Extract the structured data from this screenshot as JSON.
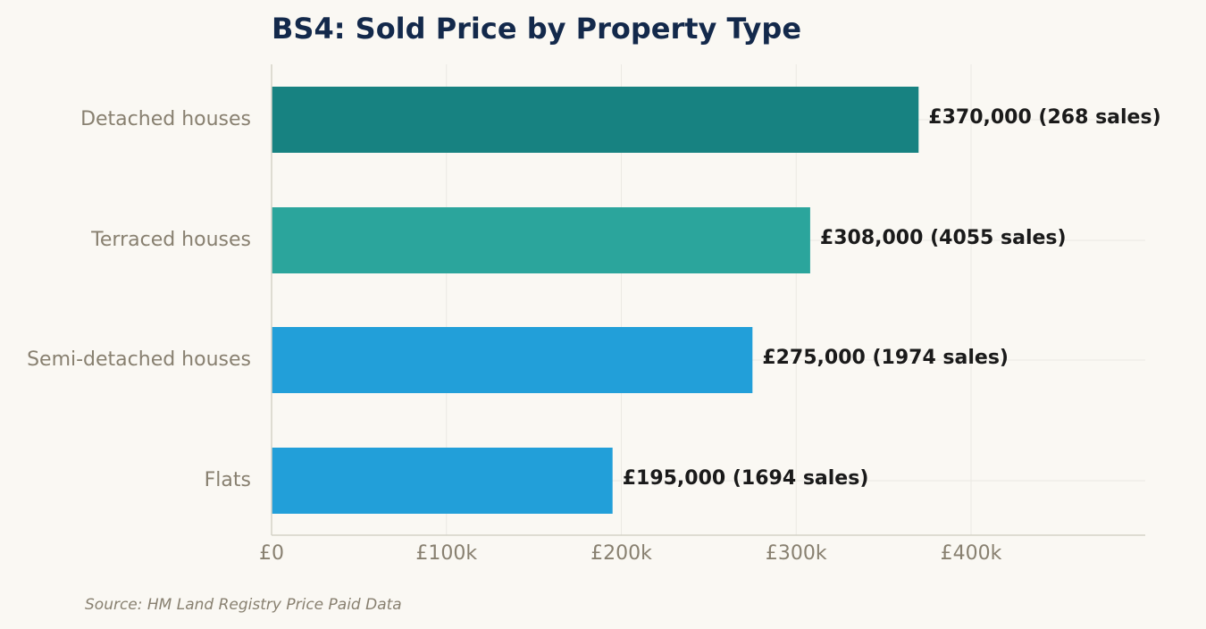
{
  "chart_data": {
    "type": "bar",
    "orientation": "horizontal",
    "title": "BS4: Sold Price by Property Type",
    "categories": [
      "Detached houses",
      "Terraced houses",
      "Semi-detached houses",
      "Flats"
    ],
    "values": [
      370000,
      308000,
      275000,
      195000
    ],
    "sales": [
      268,
      4055,
      1974,
      1694
    ],
    "value_labels": [
      "£370,000  (268 sales)",
      "£308,000  (4055 sales)",
      "£275,000  (1974 sales)",
      "£195,000  (1694 sales)"
    ],
    "bar_colors": [
      "#178281",
      "#2ba59c",
      "#229fd9",
      "#229fd9"
    ],
    "xlim": [
      0,
      500000
    ],
    "xticks": [
      0,
      100000,
      200000,
      300000,
      400000
    ],
    "xtick_labels": [
      "£0",
      "£100k",
      "£200k",
      "£300k",
      "£400k"
    ],
    "xlabel": "",
    "ylabel": "",
    "grid": true,
    "legend": "none"
  },
  "footer": {
    "source": "Source: HM Land Registry Price Paid Data"
  }
}
